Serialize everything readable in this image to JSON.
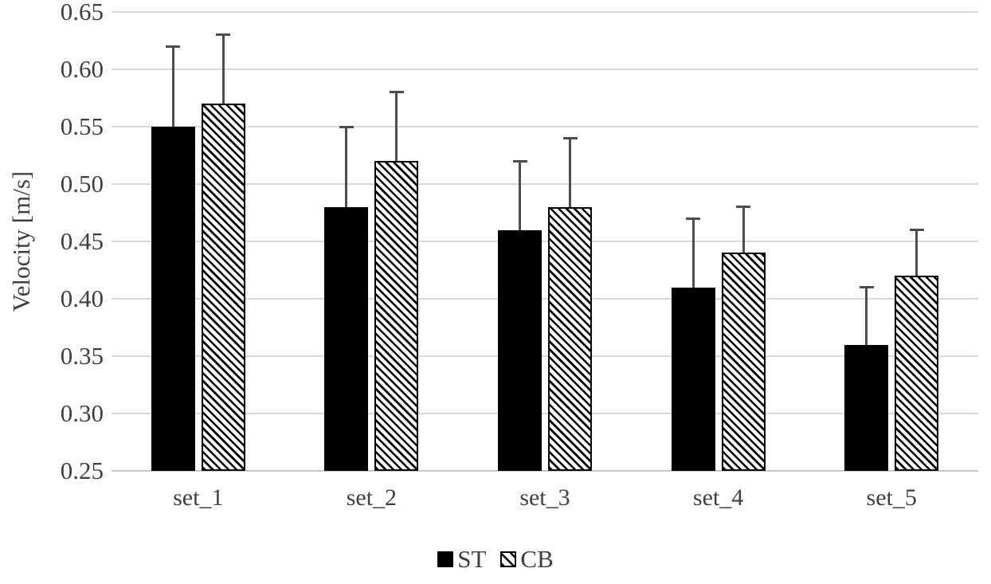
{
  "chart_data": {
    "type": "bar",
    "title": "",
    "categories": [
      "set_1",
      "set_2",
      "set_3",
      "set_4",
      "set_5"
    ],
    "series": [
      {
        "name": "ST",
        "fill": "solid-black",
        "values": [
          0.55,
          0.48,
          0.46,
          0.41,
          0.36
        ],
        "error_plus": [
          0.07,
          0.07,
          0.06,
          0.06,
          0.05
        ]
      },
      {
        "name": "CB",
        "fill": "diagonal-hatch",
        "values": [
          0.57,
          0.52,
          0.48,
          0.44,
          0.42
        ],
        "error_plus": [
          0.06,
          0.06,
          0.06,
          0.04,
          0.04
        ]
      }
    ],
    "xlabel": "",
    "ylabel": "Velocity [m/s]",
    "ylim": [
      0.25,
      0.65
    ],
    "ytick_step": 0.05,
    "ytick_labels": [
      "0.65",
      "0.60",
      "0.55",
      "0.50",
      "0.45",
      "0.40",
      "0.35",
      "0.30",
      "0.25"
    ],
    "grid": true,
    "legend_position": "bottom",
    "colors": {
      "bar_solid": "#000000",
      "hatch": "#000000",
      "grid": "#d9d9d9",
      "axis_line": "#c8c8c8",
      "error_bar": "#4d4d4d",
      "text": "#3f3f3f",
      "background": "#ffffff"
    }
  }
}
